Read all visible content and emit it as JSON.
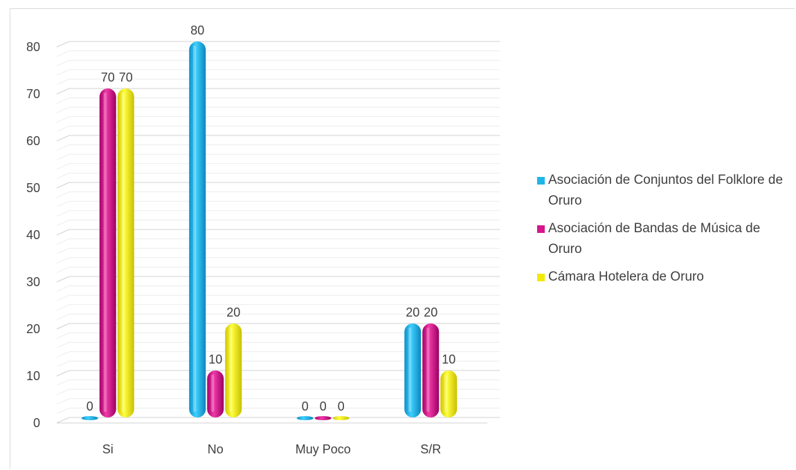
{
  "chart_data": {
    "type": "bar",
    "categories": [
      "Si",
      "No",
      "Muy Poco",
      "S/R"
    ],
    "series": [
      {
        "name": "Asociación de Conjuntos del Folklore de Oruro",
        "color": "#1fb5e8",
        "values": [
          0,
          80,
          0,
          20
        ],
        "labels": [
          "0",
          "80",
          "0",
          "20"
        ]
      },
      {
        "name": "Asociación de Bandas de Música de Oruro",
        "color": "#d6168c",
        "values": [
          70,
          10,
          0,
          20
        ],
        "labels": [
          "70",
          "10",
          "0",
          "20"
        ]
      },
      {
        "name": "Cámara Hotelera de Oruro",
        "color": "#f2ea00",
        "values": [
          70,
          20,
          0,
          10
        ],
        "labels": [
          "70",
          "20",
          "0",
          "10"
        ]
      }
    ],
    "yticks": [
      0,
      10,
      20,
      30,
      40,
      50,
      60,
      70,
      80
    ],
    "ylim": [
      0,
      80
    ],
    "grid": true,
    "legend_position": "right",
    "title": "",
    "xlabel": "",
    "ylabel": ""
  }
}
